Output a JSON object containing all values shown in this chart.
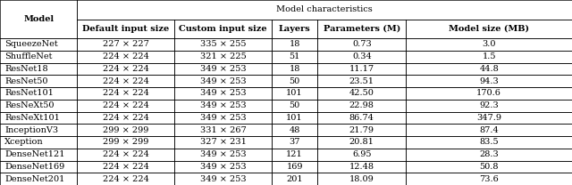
{
  "title": "Model characteristics",
  "col_header2": [
    "Default input size",
    "Custom input size",
    "Layers",
    "Parameters (M)",
    "Model size (MB)"
  ],
  "models": [
    "SqueezeNet",
    "ShuffleNet",
    "ResNet18",
    "ResNet50",
    "ResNet101",
    "ResNeXt50",
    "ResNeXt101",
    "InceptionV3",
    "Xception",
    "DenseNet121",
    "DenseNet169",
    "DenseNet201"
  ],
  "default_input": [
    "227 × 227",
    "224 × 224",
    "224 × 224",
    "224 × 224",
    "224 × 224",
    "224 × 224",
    "224 × 224",
    "299 × 299",
    "299 × 299",
    "224 × 224",
    "224 × 224",
    "224 × 224"
  ],
  "custom_input": [
    "335 × 255",
    "321 × 225",
    "349 × 253",
    "349 × 253",
    "349 × 253",
    "349 × 253",
    "349 × 253",
    "331 × 267",
    "327 × 231",
    "349 × 253",
    "349 × 253",
    "349 × 253"
  ],
  "layers": [
    "18",
    "51",
    "18",
    "50",
    "101",
    "50",
    "101",
    "48",
    "37",
    "121",
    "169",
    "201"
  ],
  "parameters": [
    "0.73",
    "0.34",
    "11.17",
    "23.51",
    "42.50",
    "22.98",
    "86.74",
    "21.79",
    "20.81",
    "6.95",
    "12.48",
    "18.09"
  ],
  "model_size": [
    "3.0",
    "1.5",
    "44.8",
    "94.3",
    "170.6",
    "92.3",
    "347.9",
    "87.4",
    "83.5",
    "28.3",
    "50.8",
    "73.6"
  ],
  "figsize": [
    6.4,
    2.08
  ],
  "dpi": 100
}
